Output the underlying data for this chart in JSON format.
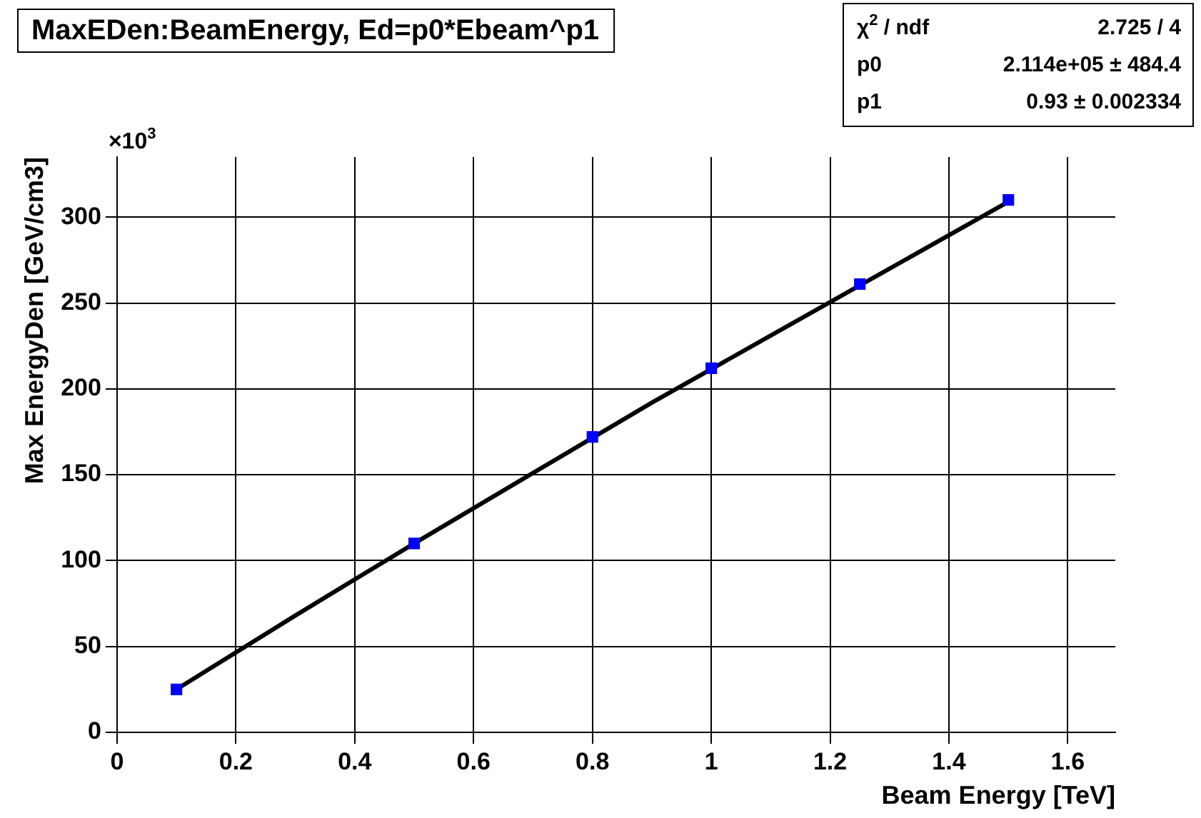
{
  "chart_data": {
    "type": "scatter",
    "title": "MaxEDen:BeamEnergy, Ed=p0*Ebeam^p1",
    "xlabel": "Beam Energy [TeV]",
    "ylabel": "Max EnergyDen [GeV/cm3]",
    "x": [
      0.1,
      0.5,
      0.8,
      1.0,
      1.25,
      1.5
    ],
    "series": [
      {
        "color": "#0000ff",
        "values": [
          25,
          110,
          172,
          212,
          261,
          310
        ],
        "marker": "square"
      },
      {
        "type": "line",
        "color": "#000000",
        "marker": "none",
        "x": [
          0.1,
          0.3,
          0.5,
          0.7,
          0.9,
          1.1,
          1.3,
          1.5
        ],
        "values": [
          25,
          68,
          110,
          151,
          192,
          231,
          270,
          309
        ]
      }
    ],
    "xlim": [
      0,
      1.68
    ],
    "xticks": [
      0,
      0.2,
      0.4,
      0.6,
      0.8,
      1,
      1.2,
      1.4,
      1.6
    ],
    "ylim": [
      0,
      335
    ],
    "yticks": [
      0,
      50,
      100,
      150,
      200,
      250,
      300
    ],
    "grid": true,
    "legend": false,
    "annotations": [
      "×10$^{3}$",
      "χ$^{2}$ / ndf",
      "2.725 / 4",
      "p0",
      "2.114e+05 ± 484.4",
      "p1",
      "0.93 ± 0.002334"
    ]
  }
}
